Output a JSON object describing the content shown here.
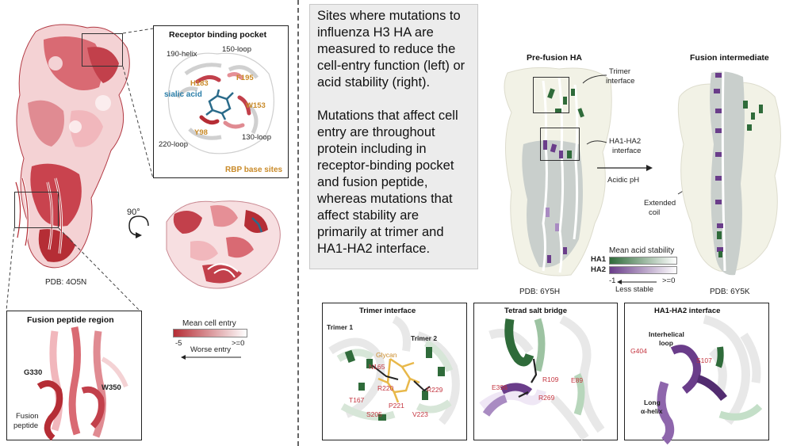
{
  "left": {
    "pdb": "PDB: 4O5N",
    "rotation": "90°",
    "receptor_pocket": {
      "title": "Receptor binding pocket",
      "labels": {
        "helix190": "190-helix",
        "loop150": "150-loop",
        "h183": "H183",
        "f195": "F195",
        "sialic": "sialic acid",
        "w153": "W153",
        "y98": "Y98",
        "loop220": "220-loop",
        "loop130": "130-loop",
        "rbp": "RBP base sites"
      }
    },
    "fusion_region": {
      "title": "Fusion peptide region",
      "labels": {
        "g330": "G330",
        "w350": "W350",
        "fusion1": "Fusion",
        "fusion2": "peptide"
      }
    },
    "legend": {
      "title": "Mean cell entry",
      "min": "-5",
      "max": ">=0",
      "caption": "Worse entry",
      "color_low": "#b52d35",
      "color_high": "#ffffff"
    }
  },
  "callout": {
    "para1": "Sites where mutations to influenza H3 HA are measured to reduce the cell-entry function (left) or acid stability (right).",
    "para2": "Mutations that affect cell entry are throughout protein including in receptor-binding pocket and fusion peptide, whereas mutations that affect stability are primarily at trimer and HA1-HA2 interface."
  },
  "right": {
    "prefusion_title": "Pre-fusion HA",
    "intermediate_title": "Fusion intermediate",
    "trimer_label1": "Trimer",
    "trimer_label2": "interface",
    "ha_label1": "HA1-HA2",
    "ha_label2": "interface",
    "acidic": "Acidic pH",
    "coil1": "Extended",
    "coil2": "coil",
    "pdb_pre": "PDB: 6Y5H",
    "pdb_int": "PDB: 6Y5K",
    "legend": {
      "title": "Mean acid stability",
      "ha1": "HA1",
      "ha2": "HA2",
      "min": "-1",
      "max": ">=0",
      "caption": "Less stable",
      "ha1_color": "#2f6b3a",
      "ha2_color": "#6a3d8a"
    }
  },
  "insets": {
    "trimer": {
      "title": "Trimer interface",
      "trimer1": "Trimer 1",
      "trimer2": "Trimer 2",
      "glycan": "Glycan",
      "n165": "N165",
      "r220": "R220",
      "r229": "R229",
      "t167": "T167",
      "p221": "P221",
      "s205": "S205",
      "v223": "V223"
    },
    "tetrad": {
      "title": "Tetrad salt bridge",
      "r109": "R109",
      "e396": "E396",
      "r269": "R269",
      "e89": "E89"
    },
    "ha_interface": {
      "title": "HA1-HA2 interface",
      "interhelical1": "Interhelical",
      "interhelical2": "loop",
      "g404": "G404",
      "s107": "S107",
      "long1": "Long",
      "long2": "α-helix"
    }
  }
}
